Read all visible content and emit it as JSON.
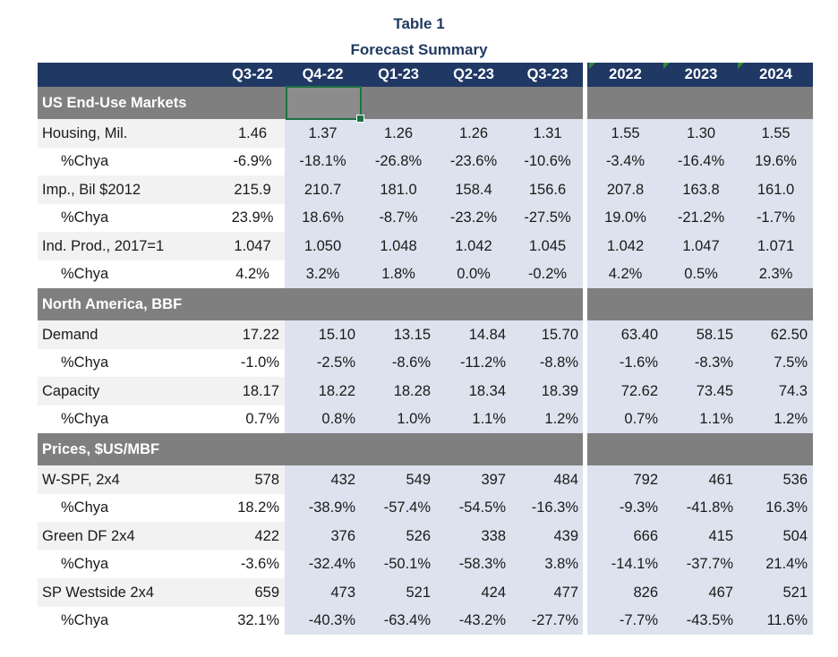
{
  "title_line1": "Table 1",
  "title_line2": "Forecast Summary",
  "columns": [
    "Q3-22",
    "Q4-22",
    "Q1-23",
    "Q2-23",
    "Q3-23",
    "2022",
    "2023",
    "2024"
  ],
  "rows": [
    {
      "type": "section",
      "label": "US End-Use Markets"
    },
    {
      "type": "data",
      "label": "Housing, Mil.",
      "indent": false,
      "align": "center",
      "values": [
        "1.46",
        "1.37",
        "1.26",
        "1.26",
        "1.31",
        "1.55",
        "1.30",
        "1.55"
      ]
    },
    {
      "type": "data",
      "label": "%Chya",
      "indent": true,
      "align": "center",
      "values": [
        "-6.9%",
        "-18.1%",
        "-26.8%",
        "-23.6%",
        "-10.6%",
        "-3.4%",
        "-16.4%",
        "19.6%"
      ]
    },
    {
      "type": "data",
      "label": "Imp., Bil $2012",
      "indent": false,
      "align": "center",
      "values": [
        "215.9",
        "210.7",
        "181.0",
        "158.4",
        "156.6",
        "207.8",
        "163.8",
        "161.0"
      ]
    },
    {
      "type": "data",
      "label": "%Chya",
      "indent": true,
      "align": "center",
      "values": [
        "23.9%",
        "18.6%",
        "-8.7%",
        "-23.2%",
        "-27.5%",
        "19.0%",
        "-21.2%",
        "-1.7%"
      ]
    },
    {
      "type": "data",
      "label": "Ind. Prod., 2017=1",
      "indent": false,
      "align": "center",
      "values": [
        "1.047",
        "1.050",
        "1.048",
        "1.042",
        "1.045",
        "1.042",
        "1.047",
        "1.071"
      ]
    },
    {
      "type": "data",
      "label": "%Chya",
      "indent": true,
      "align": "center",
      "values": [
        "4.2%",
        "3.2%",
        "1.8%",
        "0.0%",
        "-0.2%",
        "4.2%",
        "0.5%",
        "2.3%"
      ]
    },
    {
      "type": "section",
      "label": "North America, BBF"
    },
    {
      "type": "data",
      "label": "Demand",
      "indent": false,
      "align": "right",
      "values": [
        "17.22",
        "15.10",
        "13.15",
        "14.84",
        "15.70",
        "63.40",
        "58.15",
        "62.50"
      ]
    },
    {
      "type": "data",
      "label": "%Chya",
      "indent": true,
      "align": "right",
      "values": [
        "-1.0%",
        "-2.5%",
        "-8.6%",
        "-11.2%",
        "-8.8%",
        "-1.6%",
        "-8.3%",
        "7.5%"
      ]
    },
    {
      "type": "data",
      "label": "Capacity",
      "indent": false,
      "align": "right",
      "values": [
        "18.17",
        "18.22",
        "18.28",
        "18.34",
        "18.39",
        "72.62",
        "73.45",
        "74.3"
      ]
    },
    {
      "type": "data",
      "label": "%Chya",
      "indent": true,
      "align": "right",
      "values": [
        "0.7%",
        "0.8%",
        "1.0%",
        "1.1%",
        "1.2%",
        "0.7%",
        "1.1%",
        "1.2%"
      ]
    },
    {
      "type": "section",
      "label": "Prices, $US/MBF"
    },
    {
      "type": "data",
      "label": "W-SPF, 2x4",
      "indent": false,
      "align": "right",
      "values": [
        "578",
        "432",
        "549",
        "397",
        "484",
        "792",
        "461",
        "536"
      ]
    },
    {
      "type": "data",
      "label": "%Chya",
      "indent": true,
      "align": "right",
      "values": [
        "18.2%",
        "-38.9%",
        "-57.4%",
        "-54.5%",
        "-16.3%",
        "-9.3%",
        "-41.8%",
        "16.3%"
      ]
    },
    {
      "type": "data",
      "label": "Green DF 2x4",
      "indent": false,
      "align": "right",
      "values": [
        "422",
        "376",
        "526",
        "338",
        "439",
        "666",
        "415",
        "504"
      ]
    },
    {
      "type": "data",
      "label": "%Chya",
      "indent": true,
      "align": "right",
      "values": [
        "-3.6%",
        "-32.4%",
        "-50.1%",
        "-58.3%",
        "3.8%",
        "-14.1%",
        "-37.7%",
        "21.4%"
      ]
    },
    {
      "type": "data",
      "label": "SP Westside 2x4",
      "indent": false,
      "align": "right",
      "values": [
        "659",
        "473",
        "521",
        "424",
        "477",
        "826",
        "467",
        "521"
      ]
    },
    {
      "type": "data",
      "label": "%Chya",
      "indent": true,
      "align": "right",
      "values": [
        "32.1%",
        "-40.3%",
        "-63.4%",
        "-43.2%",
        "-27.7%",
        "-7.7%",
        "-43.5%",
        "11.6%"
      ]
    }
  ]
}
